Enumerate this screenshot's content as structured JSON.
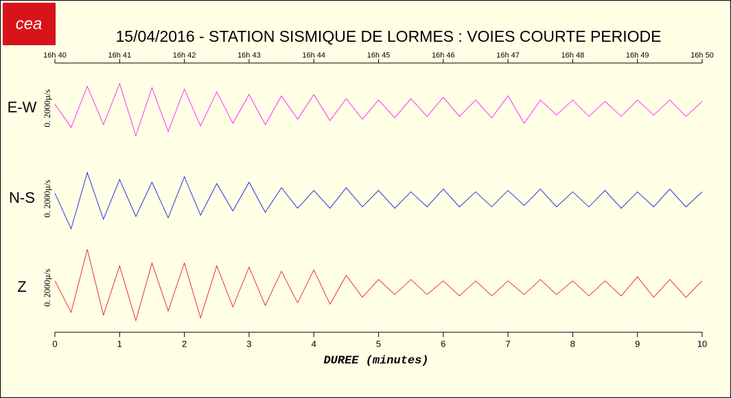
{
  "logo_text": "cea",
  "chart_data": {
    "type": "line",
    "title": "15/04/2016  -  STATION SISMIQUE DE LORMES : VOIES COURTE PERIODE",
    "xlabel": "DUREE (minutes)",
    "xlim": [
      0,
      10
    ],
    "xticks": [
      0,
      1,
      2,
      3,
      4,
      5,
      6,
      7,
      8,
      9,
      10
    ],
    "top_xticks": [
      {
        "value": 0,
        "label": "16h 40"
      },
      {
        "value": 1,
        "label": "16h 41"
      },
      {
        "value": 2,
        "label": "16h 42"
      },
      {
        "value": 3,
        "label": "16h 43"
      },
      {
        "value": 4,
        "label": "16h 44"
      },
      {
        "value": 5,
        "label": "16h 45"
      },
      {
        "value": 6,
        "label": "16h 46"
      },
      {
        "value": 7,
        "label": "16h 47"
      },
      {
        "value": 8,
        "label": "16h 48"
      },
      {
        "value": 9,
        "label": "16h 49"
      },
      {
        "value": 10,
        "label": "16h 50"
      }
    ],
    "x": [
      0,
      0.25,
      0.5,
      0.75,
      1,
      1.25,
      1.5,
      1.75,
      2,
      2.25,
      2.5,
      2.75,
      3,
      3.25,
      3.5,
      3.75,
      4,
      4.25,
      4.5,
      4.75,
      5,
      5.25,
      5.5,
      5.75,
      6,
      6.25,
      6.5,
      6.75,
      7,
      7.25,
      7.5,
      7.75,
      8,
      8.25,
      8.5,
      8.75,
      9,
      9.25,
      9.5,
      9.75,
      10
    ],
    "series": [
      {
        "name": "E-W",
        "color": "#ff00ff",
        "scale_label": "0. 2000µ/s",
        "ylim": [
          -3000,
          3000
        ],
        "values": [
          300,
          -1400,
          1600,
          -1200,
          1800,
          -2000,
          1500,
          -1700,
          1400,
          -1300,
          1200,
          -1100,
          1000,
          -1200,
          900,
          -800,
          1000,
          -900,
          700,
          -800,
          600,
          -700,
          700,
          -600,
          800,
          -600,
          600,
          -700,
          900,
          -1100,
          600,
          -500,
          600,
          -600,
          500,
          -600,
          600,
          -500,
          600,
          -600,
          500
        ]
      },
      {
        "name": "N-S",
        "color": "#0000dd",
        "scale_label": "0. 2000µ/s",
        "ylim": [
          -3000,
          3000
        ],
        "values": [
          400,
          -2200,
          1900,
          -1500,
          1400,
          -1300,
          1200,
          -1400,
          1600,
          -1200,
          1100,
          -900,
          1200,
          -1000,
          800,
          -700,
          600,
          -700,
          800,
          -600,
          600,
          -700,
          500,
          -600,
          700,
          -600,
          500,
          -600,
          600,
          -500,
          700,
          -600,
          500,
          -600,
          600,
          -700,
          500,
          -600,
          700,
          -600,
          500
        ]
      },
      {
        "name": "Z",
        "color": "#ee0000",
        "scale_label": "0. 2000µ/s",
        "ylim": [
          -3000,
          3000
        ],
        "values": [
          500,
          -1800,
          2800,
          -2000,
          1600,
          -2400,
          1800,
          -1700,
          1800,
          -2200,
          1600,
          -1400,
          1500,
          -1300,
          1200,
          -1100,
          1300,
          -1200,
          900,
          -700,
          600,
          -500,
          600,
          -500,
          500,
          -600,
          500,
          -600,
          500,
          -500,
          600,
          -500,
          500,
          -600,
          500,
          -600,
          800,
          -700,
          600,
          -700,
          500
        ]
      }
    ]
  }
}
